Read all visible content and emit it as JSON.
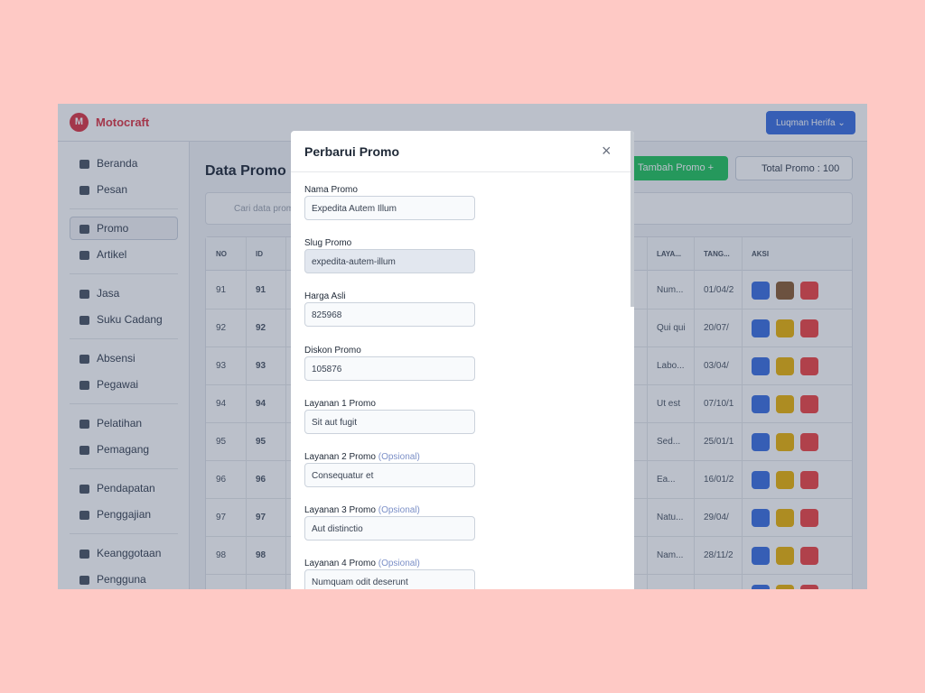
{
  "header": {
    "brand_initial": "M",
    "brand": "Motocraft",
    "user": "Luqman Herifa"
  },
  "sidebar": {
    "groups": [
      [
        "Beranda",
        "Pesan"
      ],
      [
        "Promo",
        "Artikel"
      ],
      [
        "Jasa",
        "Suku Cadang"
      ],
      [
        "Absensi",
        "Pegawai"
      ],
      [
        "Pelatihan",
        "Pemagang"
      ],
      [
        "Pendapatan",
        "Penggajian"
      ],
      [
        "Keanggotaan",
        "Pengguna"
      ]
    ],
    "active": "Promo"
  },
  "page": {
    "title": "Data Promo",
    "add_button": "Tambah Promo",
    "total_label": "Total Promo",
    "total_value": ": 100",
    "search_placeholder": "Cari data promo"
  },
  "table": {
    "headers": [
      "NO",
      "ID",
      "LAYA...",
      "TANG...",
      "AKSI"
    ],
    "rows": [
      [
        "91",
        "91",
        "Num...",
        "01/04/2"
      ],
      [
        "92",
        "92",
        "Qui qui",
        "20/07/"
      ],
      [
        "93",
        "93",
        "Labo...",
        "03/04/"
      ],
      [
        "94",
        "94",
        "Ut est",
        "07/10/1"
      ],
      [
        "95",
        "95",
        "Sed...",
        "25/01/1"
      ],
      [
        "96",
        "96",
        "Ea...",
        "16/01/2"
      ],
      [
        "97",
        "97",
        "Natu...",
        "29/04/"
      ],
      [
        "98",
        "98",
        "Nam...",
        "28/11/2"
      ]
    ]
  },
  "modal": {
    "title": "Perbarui Promo",
    "close": "×",
    "optional": "(Opsional)",
    "fields": [
      {
        "label": "Nama Promo",
        "value": "Expedita Autem Illum"
      },
      {
        "label": "Slug Promo",
        "value": "expedita-autem-illum",
        "disabled": true
      },
      {
        "label": "Harga Asli",
        "value": "825968"
      },
      {
        "label": "Diskon Promo",
        "value": "105876"
      },
      {
        "label": "Layanan 1 Promo",
        "value": "Sit aut fugit"
      },
      {
        "label": "Layanan 2 Promo",
        "value": "Consequatur et",
        "optional": true
      },
      {
        "label": "Layanan 3 Promo",
        "value": "Aut distinctio",
        "optional": true
      },
      {
        "label": "Layanan 4 Promo",
        "value": "Numquam odit deserunt",
        "optional": true
      }
    ]
  }
}
